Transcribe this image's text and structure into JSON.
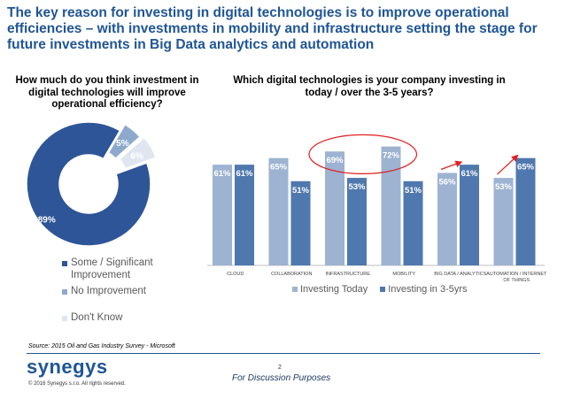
{
  "slide": {
    "title": "The key reason for investing in digital technologies is to improve operational efficiencies – with investments in mobility and infrastructure setting the stage for future investments in Big Data analytics and automation",
    "source": "Source:  2015 Oil and Gas Industry  Survey - Microsoft",
    "logo": "synegys",
    "copyright": "© 2016 Synegys s.r.o. All rights reserved.",
    "page_number": "2",
    "disclaimer": "For Discussion Purposes"
  },
  "colors": {
    "title": "#1f5597",
    "today": "#9db3d1",
    "future": "#4f78ae",
    "pie_main": "#2e5597",
    "pie_no": "#8da9cd",
    "pie_dk": "#dfe6f0",
    "highlight": "#e02020"
  },
  "chart_data": [
    {
      "type": "pie",
      "title": "How much do you think investment in digital technologies will improve operational efficiency?",
      "slices": [
        {
          "label": "Some / Significant Improvement",
          "value": 89,
          "display": "89%",
          "color": "#2e5597"
        },
        {
          "label": "No Improvement",
          "value": 5,
          "display": "5%",
          "color": "#8da9cd"
        },
        {
          "label": "Don't Know",
          "value": 6,
          "display": "6%",
          "color": "#dfe6f0"
        }
      ]
    },
    {
      "type": "bar",
      "title": "Which digital technologies is your company investing in today / over the 3-5 years?",
      "categories": [
        "CLOUD",
        "COLLABORATION",
        "INFRASTRUCTURE",
        "MOBILITY",
        "BIG DATA / ANALYTICS",
        "AUTOMATION / INTERNET OF THINGS"
      ],
      "series": [
        {
          "name": "Investing Today",
          "values": [
            61,
            65,
            69,
            72,
            56,
            53
          ],
          "labels": [
            "61%",
            "65%",
            "69%",
            "72%",
            "56%",
            "53%"
          ]
        },
        {
          "name": "Investing in 3-5yrs",
          "values": [
            61,
            51,
            53,
            51,
            61,
            65
          ],
          "labels": [
            "61%",
            "51%",
            "53%",
            "51%",
            "61%",
            "65%"
          ]
        }
      ],
      "ylim": [
        0,
        90
      ],
      "xlabel": "",
      "ylabel": "",
      "legend": "bottom",
      "annotations": [
        "circle-around-infrastructure-mobility",
        "arrow-big-data",
        "arrow-automation"
      ]
    }
  ]
}
